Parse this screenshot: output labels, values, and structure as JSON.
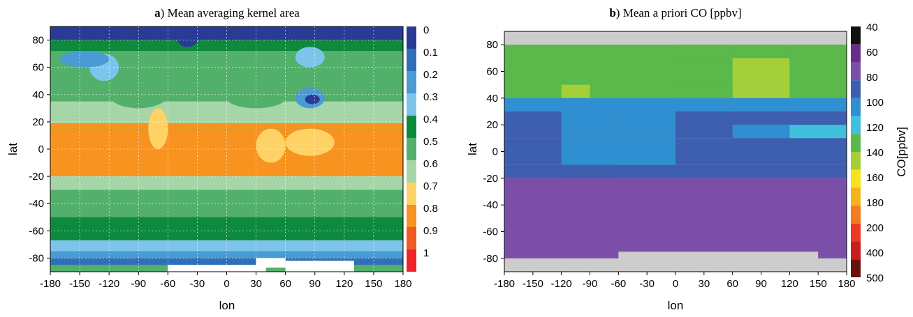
{
  "chart_data": [
    {
      "type": "heatmap",
      "panel_letter": "a",
      "title": "Mean averaging kernel area",
      "xlabel": "lon",
      "ylabel": "lat",
      "xlim": [
        -180,
        180
      ],
      "ylim": [
        -90,
        90
      ],
      "x_ticks": [
        "-180",
        "-150",
        "-120",
        "-90",
        "-60",
        "-30",
        "0",
        "30",
        "60",
        "90",
        "120",
        "150",
        "180"
      ],
      "y_ticks": [
        "80",
        "60",
        "40",
        "20",
        "0",
        "-20",
        "-40",
        "-60",
        "-80"
      ],
      "grid": true,
      "colorbar": {
        "ticks": [
          "0",
          "0.1",
          "0.2",
          "0.3",
          "0.4",
          "0.5",
          "0.6",
          "0.7",
          "0.8",
          "0.9",
          "1"
        ],
        "colors": [
          "#2a3b95",
          "#2f6fb7",
          "#4a9ad4",
          "#7dc4ea",
          "#0d8a3e",
          "#52b06b",
          "#a6d6a8",
          "#ffd266",
          "#f7931e",
          "#f15a24",
          "#ee2328"
        ]
      },
      "zonal_bands": [
        {
          "lat": [
            80,
            90
          ],
          "value": 0.05
        },
        {
          "lat": [
            72,
            80
          ],
          "value": 0.45
        },
        {
          "lat": [
            48,
            72
          ],
          "value": 0.55
        },
        {
          "lat": [
            35,
            48
          ],
          "value": 0.6
        },
        {
          "lat": [
            25,
            35
          ],
          "value": 0.65
        },
        {
          "lat": [
            19,
            25
          ],
          "value": 0.7
        },
        {
          "lat": [
            15,
            19
          ],
          "value": 0.85
        },
        {
          "lat": [
            -20,
            15
          ],
          "value": 0.85
        },
        {
          "lat": [
            -30,
            -20
          ],
          "value": 0.65
        },
        {
          "lat": [
            -50,
            -30
          ],
          "value": 0.55
        },
        {
          "lat": [
            -67,
            -50
          ],
          "value": 0.45
        },
        {
          "lat": [
            -75,
            -67
          ],
          "value": 0.35
        },
        {
          "lat": [
            -80,
            -75
          ],
          "value": 0.25
        },
        {
          "lat": [
            -85,
            -80
          ],
          "value": 0.15
        }
      ],
      "regional_features": [
        {
          "lon": [
            -80,
            -60
          ],
          "lat": [
            0,
            30
          ],
          "value": 0.75
        },
        {
          "lon": [
            30,
            60
          ],
          "lat": [
            -10,
            15
          ],
          "value": 0.75
        },
        {
          "lon": [
            60,
            110
          ],
          "lat": [
            -5,
            15
          ],
          "value": 0.75
        },
        {
          "lon": [
            -120,
            -60
          ],
          "lat": [
            30,
            50
          ],
          "value": 0.6
        },
        {
          "lon": [
            0,
            60
          ],
          "lat": [
            30,
            45
          ],
          "value": 0.6
        },
        {
          "lon": [
            70,
            100
          ],
          "lat": [
            30,
            45
          ],
          "value": 0.3
        },
        {
          "lon": [
            80,
            95
          ],
          "lat": [
            33,
            40
          ],
          "value": 0.05
        },
        {
          "lon": [
            -50,
            -30
          ],
          "lat": [
            75,
            85
          ],
          "value": 0.05
        },
        {
          "lon": [
            -140,
            -110
          ],
          "lat": [
            50,
            70
          ],
          "value": 0.35
        },
        {
          "lon": [
            -170,
            -120
          ],
          "lat": [
            60,
            72
          ],
          "value": 0.3
        },
        {
          "lon": [
            70,
            100
          ],
          "lat": [
            60,
            75
          ],
          "value": 0.35
        }
      ],
      "no_data": [
        {
          "lon": [
            -60,
            40
          ],
          "lat": [
            -90,
            -85
          ]
        },
        {
          "lon": [
            60,
            130
          ],
          "lat": [
            -90,
            -82
          ]
        },
        {
          "lon": [
            30,
            60
          ],
          "lat": [
            -87,
            -80
          ]
        }
      ]
    },
    {
      "type": "heatmap",
      "panel_letter": "b",
      "title": "Mean a priori CO [ppbv]",
      "xlabel": "lon",
      "ylabel": "lat",
      "xlim": [
        -180,
        180
      ],
      "ylim": [
        -90,
        90
      ],
      "x_ticks": [
        "-180",
        "-150",
        "-120",
        "-90",
        "-60",
        "-30",
        "0",
        "30",
        "60",
        "90",
        "120",
        "150",
        "180"
      ],
      "y_ticks": [
        "80",
        "60",
        "40",
        "20",
        "0",
        "-20",
        "-40",
        "-60",
        "-80"
      ],
      "grid": false,
      "colorbar": {
        "label": "CO[ppbv]",
        "ticks": [
          "40",
          "60",
          "80",
          "100",
          "120",
          "140",
          "160",
          "180",
          "200",
          "400",
          "500"
        ],
        "colors": [
          "#111111",
          "#6b2d8c",
          "#7b4fa8",
          "#3e5fb0",
          "#2f8fd0",
          "#3fc0dc",
          "#5bb84a",
          "#a5cf3a",
          "#f7e21b",
          "#f5b21b",
          "#f47b20",
          "#ee3a24",
          "#c81e1e",
          "#6b0f0f"
        ]
      },
      "missing_data_color": "#cccccc",
      "grid_cells": [
        {
          "lon": [
            -180,
            180
          ],
          "lat": [
            80,
            90
          ],
          "value": null
        },
        {
          "lon": [
            -180,
            180
          ],
          "lat": [
            60,
            80
          ],
          "value": 140
        },
        {
          "lon": [
            0,
            60
          ],
          "lat": [
            60,
            80
          ],
          "value": 140
        },
        {
          "lon": [
            60,
            120
          ],
          "lat": [
            60,
            80
          ],
          "value": 150
        },
        {
          "lon": [
            120,
            180
          ],
          "lat": [
            60,
            80
          ],
          "value": 145
        },
        {
          "lon": [
            -180,
            180
          ],
          "lat": [
            40,
            60
          ],
          "value": 140
        },
        {
          "lon": [
            -120,
            -90
          ],
          "lat": [
            40,
            50
          ],
          "value": 160
        },
        {
          "lon": [
            0,
            60
          ],
          "lat": [
            50,
            70
          ],
          "value": 155
        },
        {
          "lon": [
            60,
            120
          ],
          "lat": [
            50,
            70
          ],
          "value": 160
        },
        {
          "lon": [
            60,
            120
          ],
          "lat": [
            20,
            50
          ],
          "value": 160
        },
        {
          "lon": [
            0,
            60
          ],
          "lat": [
            40,
            50
          ],
          "value": 140
        },
        {
          "lon": [
            -180,
            180
          ],
          "lat": [
            30,
            40
          ],
          "value": 115
        },
        {
          "lon": [
            -120,
            -60
          ],
          "lat": [
            30,
            40
          ],
          "value": 110
        },
        {
          "lon": [
            -60,
            0
          ],
          "lat": [
            30,
            40
          ],
          "value": 115
        },
        {
          "lon": [
            0,
            60
          ],
          "lat": [
            20,
            40
          ],
          "value": 100
        },
        {
          "lon": [
            -180,
            180
          ],
          "lat": [
            10,
            30
          ],
          "value": 95
        },
        {
          "lon": [
            -120,
            -60
          ],
          "lat": [
            10,
            30
          ],
          "value": 115
        },
        {
          "lon": [
            -60,
            0
          ],
          "lat": [
            10,
            30
          ],
          "value": 110
        },
        {
          "lon": [
            0,
            60
          ],
          "lat": [
            0,
            10
          ],
          "value": 135
        },
        {
          "lon": [
            60,
            120
          ],
          "lat": [
            0,
            20
          ],
          "value": 110
        },
        {
          "lon": [
            120,
            180
          ],
          "lat": [
            10,
            20
          ],
          "value": 120
        },
        {
          "lon": [
            -180,
            180
          ],
          "lat": [
            -10,
            10
          ],
          "value": 95
        },
        {
          "lon": [
            -120,
            0
          ],
          "lat": [
            -10,
            10
          ],
          "value": 110
        },
        {
          "lon": [
            -180,
            180
          ],
          "lat": [
            -20,
            -10
          ],
          "value": 80
        },
        {
          "lon": [
            -120,
            -60
          ],
          "lat": [
            -20,
            -10
          ],
          "value": 90
        },
        {
          "lon": [
            -180,
            180
          ],
          "lat": [
            -30,
            -20
          ],
          "value": 70
        },
        {
          "lon": [
            -180,
            180
          ],
          "lat": [
            -80,
            -30
          ],
          "value": 65
        },
        {
          "lon": [
            -180,
            180
          ],
          "lat": [
            -90,
            -85
          ],
          "value": null
        },
        {
          "lon": [
            -60,
            150
          ],
          "lat": [
            -85,
            -75
          ],
          "value": null
        }
      ]
    }
  ]
}
